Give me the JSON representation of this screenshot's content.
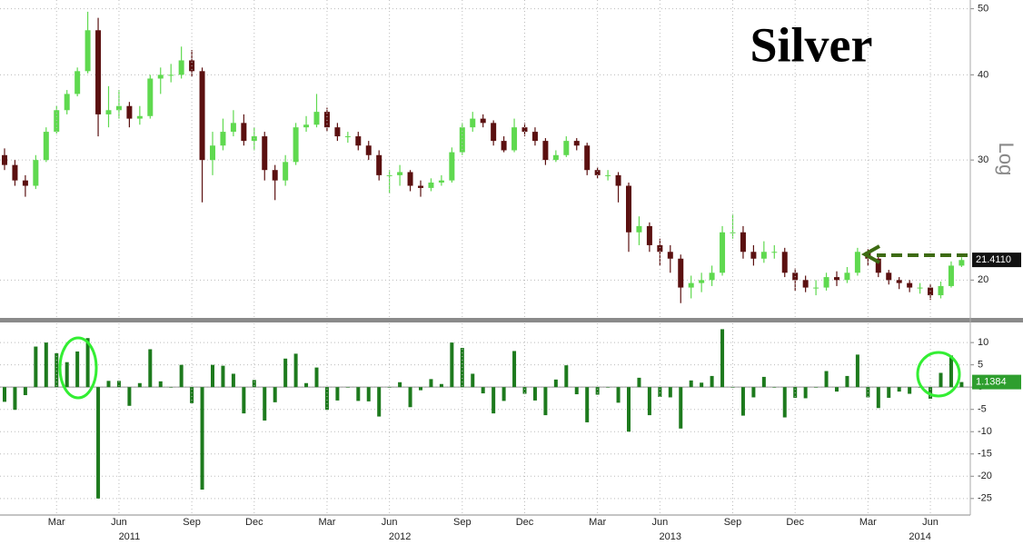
{
  "chart_data": [
    {
      "type": "candlestick",
      "title": "Silver",
      "scale_label": "Log",
      "log_scale": true,
      "ylim": [
        17.6,
        51.5
      ],
      "yticks": [
        20,
        30,
        40,
        50
      ],
      "grid": true,
      "up_color": "#5fd94f",
      "down_color": "#5b1010",
      "open": [
        30.5,
        29.5,
        28.0,
        27.5,
        30.0,
        33.0,
        35.5,
        37.5,
        40.5,
        46.5,
        35.0,
        35.5,
        36.0,
        34.5,
        34.8,
        39.5,
        40.0,
        40.0,
        42.0,
        40.5,
        30.0,
        31.5,
        33.0,
        34.0,
        32.0,
        32.5,
        29.0,
        28.0,
        29.8,
        33.5,
        33.8,
        35.3,
        33.5,
        32.5,
        32.5,
        31.5,
        30.5,
        28.5,
        28.5,
        28.8,
        27.5,
        27.3,
        27.8,
        28.0,
        30.8,
        33.5,
        34.5,
        34.0,
        32.0,
        31.0,
        33.5,
        33.0,
        32.0,
        30.0,
        30.5,
        32.0,
        31.5,
        29.0,
        28.5,
        28.5,
        27.5,
        23.5,
        24.0,
        22.5,
        22.0,
        21.5,
        19.5,
        19.8,
        20.0,
        20.5,
        23.5,
        23.5,
        22.0,
        21.5,
        22.0,
        22.0,
        20.5,
        20.0,
        19.5,
        19.5,
        20.2,
        20.0,
        20.5,
        22.0,
        21.5,
        20.5,
        20.0,
        19.8,
        19.5,
        19.5,
        19.0,
        19.6,
        21.0
      ],
      "high": [
        31.2,
        30.0,
        28.5,
        30.5,
        33.5,
        36.0,
        38.0,
        41.0,
        49.5,
        48.5,
        38.5,
        38.0,
        36.5,
        36.0,
        40.0,
        41.0,
        41.5,
        44.0,
        43.5,
        41.0,
        33.0,
        34.5,
        35.5,
        35.0,
        33.5,
        33.0,
        29.5,
        30.5,
        34.0,
        34.8,
        37.5,
        35.8,
        34.0,
        33.0,
        33.0,
        32.0,
        31.0,
        29.0,
        29.5,
        29.0,
        28.0,
        28.2,
        28.5,
        31.3,
        34.0,
        35.3,
        35.0,
        34.3,
        32.5,
        34.5,
        34.0,
        33.5,
        32.3,
        31.0,
        32.5,
        32.3,
        31.8,
        29.3,
        29.0,
        28.8,
        27.8,
        24.8,
        24.3,
        23.0,
        22.5,
        21.8,
        20.3,
        20.5,
        21.0,
        24.0,
        25.0,
        24.0,
        22.5,
        22.8,
        22.5,
        22.3,
        20.8,
        20.3,
        20.0,
        20.5,
        20.6,
        20.9,
        22.3,
        22.2,
        21.8,
        20.7,
        20.2,
        20.0,
        19.8,
        19.7,
        19.9,
        21.3,
        21.6
      ],
      "low": [
        29.0,
        27.5,
        26.5,
        27.2,
        29.8,
        32.8,
        35.0,
        37.2,
        40.2,
        32.5,
        33.5,
        34.5,
        33.5,
        33.8,
        34.5,
        37.5,
        39.0,
        39.5,
        39.8,
        26.0,
        28.5,
        31.0,
        32.5,
        31.5,
        31.0,
        28.0,
        26.2,
        27.5,
        29.5,
        33.0,
        33.5,
        33.0,
        32.0,
        31.8,
        31.0,
        30.0,
        28.0,
        26.8,
        27.5,
        27.0,
        26.5,
        27.0,
        27.5,
        27.8,
        30.5,
        33.0,
        33.5,
        31.5,
        30.8,
        30.8,
        32.5,
        31.5,
        29.5,
        29.8,
        30.3,
        31.0,
        28.5,
        28.2,
        28.0,
        26.0,
        22.0,
        22.5,
        22.0,
        21.0,
        20.5,
        18.5,
        18.8,
        19.2,
        19.6,
        20.3,
        23.0,
        21.5,
        21.0,
        21.2,
        21.5,
        20.2,
        19.3,
        19.2,
        19.0,
        19.3,
        19.6,
        19.8,
        20.3,
        21.0,
        20.2,
        19.7,
        19.4,
        19.2,
        19.1,
        18.7,
        18.8,
        19.5,
        20.9
      ],
      "close": [
        29.5,
        28.0,
        27.5,
        30.0,
        33.0,
        35.5,
        37.5,
        40.5,
        46.5,
        35.0,
        35.5,
        36.0,
        34.5,
        34.8,
        39.5,
        40.0,
        40.0,
        42.0,
        40.5,
        30.0,
        31.5,
        33.0,
        34.0,
        32.0,
        32.5,
        29.0,
        28.0,
        29.8,
        33.5,
        33.8,
        35.3,
        33.5,
        32.5,
        32.5,
        31.5,
        30.5,
        28.5,
        28.5,
        28.8,
        27.5,
        27.3,
        27.8,
        28.0,
        30.8,
        33.5,
        34.5,
        34.0,
        32.0,
        31.0,
        33.5,
        33.0,
        32.0,
        30.0,
        30.5,
        32.0,
        31.5,
        29.0,
        28.5,
        28.5,
        27.5,
        23.5,
        24.0,
        22.5,
        22.0,
        21.5,
        19.5,
        19.8,
        20.0,
        20.5,
        23.5,
        23.5,
        22.0,
        21.5,
        22.0,
        22.0,
        20.5,
        20.0,
        19.5,
        19.5,
        20.2,
        20.0,
        20.5,
        22.0,
        21.5,
        20.5,
        20.0,
        19.8,
        19.5,
        19.5,
        19.0,
        19.6,
        21.0,
        21.4
      ],
      "last_price": {
        "value": 21.411,
        "label": "21.4110"
      }
    },
    {
      "type": "bar",
      "color": "#1d7a1d",
      "ylim": [
        -28.3,
        13.9
      ],
      "yticks": [
        10,
        5,
        0,
        -5,
        -10,
        -15,
        -20,
        -25
      ],
      "grid": true,
      "values": [
        -3.3,
        -5.1,
        -1.8,
        9.1,
        10.0,
        7.6,
        5.6,
        8.0,
        11.0,
        -25.0,
        1.4,
        1.4,
        -4.2,
        0.9,
        8.5,
        1.3,
        0.0,
        5.0,
        -3.6,
        -23.0,
        5.0,
        4.8,
        3.0,
        -5.9,
        1.6,
        -7.5,
        -3.4,
        6.4,
        7.5,
        0.9,
        4.4,
        -5.1,
        -3.0,
        0.0,
        -3.1,
        -3.2,
        -6.6,
        0.0,
        1.1,
        -4.5,
        -0.7,
        1.8,
        0.7,
        10.0,
        8.8,
        3.0,
        -1.4,
        -5.9,
        -3.1,
        8.1,
        -1.5,
        -3.0,
        -6.3,
        1.7,
        4.9,
        -1.6,
        -7.9,
        -1.7,
        0.0,
        -3.5,
        -10.0,
        2.1,
        -6.3,
        -2.2,
        -2.3,
        -9.3,
        1.5,
        1.0,
        2.5,
        13.0,
        0.0,
        -6.4,
        -2.3,
        2.3,
        0.0,
        -6.8,
        -2.4,
        -2.5,
        0.0,
        3.6,
        -1.0,
        2.5,
        7.3,
        -2.3,
        -4.7,
        -2.4,
        -1.0,
        -1.5,
        0.0,
        -2.6,
        3.2,
        7.1,
        1.1384
      ],
      "categories": [
        null,
        null,
        null,
        null,
        null,
        "Mar",
        null,
        null,
        null,
        null,
        null,
        "Jun",
        null,
        null,
        null,
        null,
        null,
        null,
        "Sep",
        null,
        null,
        null,
        null,
        null,
        "Dec",
        null,
        null,
        null,
        null,
        null,
        null,
        "Mar",
        null,
        null,
        null,
        null,
        null,
        "Jun",
        null,
        null,
        null,
        null,
        null,
        null,
        "Sep",
        null,
        null,
        null,
        null,
        null,
        "Dec",
        null,
        null,
        null,
        null,
        null,
        null,
        "Mar",
        null,
        null,
        null,
        null,
        null,
        "Jun",
        null,
        null,
        null,
        null,
        null,
        null,
        "Sep",
        null,
        null,
        null,
        null,
        null,
        "Dec",
        null,
        null,
        null,
        null,
        null,
        null,
        "Mar",
        null,
        null,
        null,
        null,
        null,
        "Jun",
        null,
        null,
        null
      ],
      "year_labels": [
        null,
        null,
        null,
        null,
        null,
        null,
        null,
        null,
        null,
        null,
        null,
        null,
        "2011",
        null,
        null,
        null,
        null,
        null,
        null,
        null,
        null,
        null,
        null,
        null,
        null,
        null,
        null,
        null,
        null,
        null,
        null,
        null,
        null,
        null,
        null,
        null,
        null,
        null,
        "2012",
        null,
        null,
        null,
        null,
        null,
        null,
        null,
        null,
        null,
        null,
        null,
        null,
        null,
        null,
        null,
        null,
        null,
        null,
        null,
        null,
        null,
        null,
        null,
        null,
        null,
        "2013",
        null,
        null,
        null,
        null,
        null,
        null,
        null,
        null,
        null,
        null,
        null,
        null,
        null,
        null,
        null,
        null,
        null,
        null,
        null,
        null,
        null,
        null,
        null,
        "2014",
        null,
        null,
        null,
        null,
        null,
        null
      ]
    }
  ]
}
